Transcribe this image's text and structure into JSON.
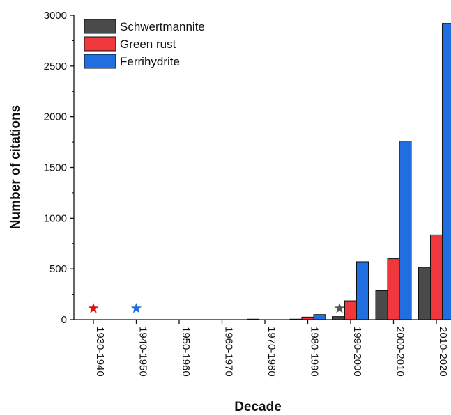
{
  "chart_data": {
    "type": "bar",
    "xlabel": "Decade",
    "ylabel": "Number of citations",
    "ylim": [
      0,
      3000
    ],
    "yticks": [
      0,
      500,
      1000,
      1500,
      2000,
      2500,
      3000
    ],
    "categories": [
      "1930-1940",
      "1940-1950",
      "1950-1960",
      "1960-1970",
      "1970-1980",
      "1980-1990",
      "1990-2000",
      "2000-2010",
      "2010-2020"
    ],
    "series": [
      {
        "name": "Schwertmannite",
        "color": "#4a4a4a",
        "values": [
          0,
          0,
          0,
          0,
          5,
          5,
          30,
          285,
          515
        ]
      },
      {
        "name": "Green rust",
        "color": "#f0383c",
        "values": [
          0,
          0,
          0,
          0,
          0,
          25,
          185,
          600,
          835
        ]
      },
      {
        "name": "Ferrihydrite",
        "color": "#1f6fe0",
        "values": [
          0,
          0,
          0,
          0,
          0,
          50,
          570,
          1760,
          2920
        ]
      }
    ],
    "markers": [
      {
        "shape": "star",
        "category": "1930-1940",
        "y": 110,
        "color": "#e01010"
      },
      {
        "shape": "star",
        "category": "1940-1950",
        "y": 110,
        "color": "#1f6fe0"
      },
      {
        "shape": "star",
        "category": "1990-2000",
        "y": 110,
        "color": "#555555"
      }
    ],
    "legend": "top-left",
    "grid": false
  }
}
